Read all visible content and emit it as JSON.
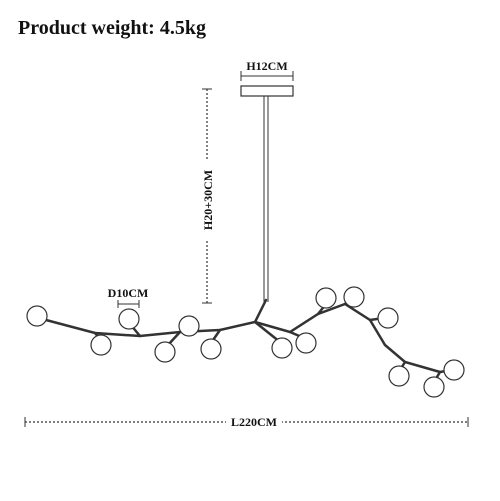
{
  "header": {
    "title": "Product weight: 4.5kg"
  },
  "dimensions": {
    "canopy": "H12CM",
    "height": "H20+30CM",
    "globe": "D10CM",
    "length": "L220CM"
  }
}
